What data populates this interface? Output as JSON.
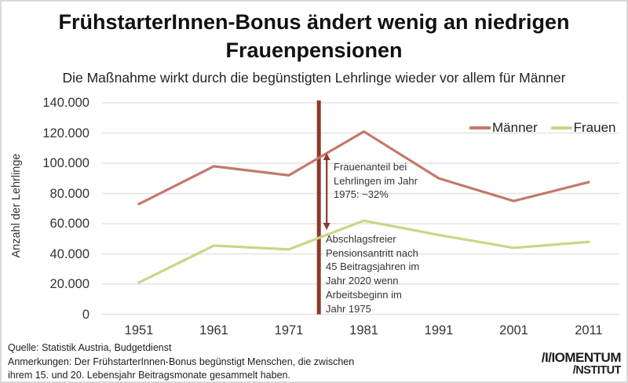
{
  "header": {
    "title_line1": "FrühstarterInnen-Bonus ändert wenig an niedrigen",
    "title_line2": "Frauenpensionen",
    "subtitle": "Die Maßnahme wirkt durch die begünstigten Lehrlinge wieder vor allem für Männer"
  },
  "chart_data": {
    "type": "line",
    "title": "FrühstarterInnen-Bonus ändert wenig an niedrigen Frauenpensionen",
    "xlabel": "",
    "ylabel": "Anzahl der Lehrlinge",
    "categories": [
      "1951",
      "1961",
      "1971",
      "1981",
      "1991",
      "2001",
      "2011"
    ],
    "series": [
      {
        "name": "Männer",
        "color": "#c4796a",
        "values": [
          73000,
          98000,
          92000,
          121000,
          90000,
          75000,
          87500
        ]
      },
      {
        "name": "Frauen",
        "color": "#c9d687",
        "values": [
          21000,
          45500,
          43000,
          62000,
          52500,
          44000,
          48000
        ]
      }
    ],
    "ylim": [
      0,
      140000
    ],
    "ytick_step": 20000,
    "ytick_labels": [
      "0",
      "20.000",
      "40.000",
      "60.000",
      "80.000",
      "100.000",
      "120.000",
      "140.000"
    ],
    "grid": "horizontal",
    "legend_position": "top-right",
    "reference_line": {
      "year": 1975,
      "color": "#8a3a28"
    },
    "arrow": {
      "color": "#8a3a28"
    },
    "annotations": [
      {
        "id": "frauenanteil",
        "text": "Frauenanteil bei\nLehrlingen im Jahr\n1975: ~32%"
      },
      {
        "id": "abschlagsfrei",
        "text": "Abschlagsfreier\nPensionsantritt nach\n45 Beitragsjahren im\nJahr 2020 wenn\nArbeitsbeginn im\nJahr 1975"
      }
    ]
  },
  "footer": {
    "source": "Quelle: Statistik Austria, Budgetdienst",
    "notes_line1": "Anmerkungen: Der FrühstarterInnen-Bonus begünstigt Menschen, die zwischen",
    "notes_line2": "ihrem 15. und 20. Lebensjahr Beitragsmonate gesammelt haben.",
    "logo_line1": "/I/IOMENTUM",
    "logo_line2": "/NSTITUT"
  },
  "colors": {
    "maenner": "#c4796a",
    "frauen": "#c9d687",
    "accent_dark_red": "#8a3a28",
    "grid": "#e3e3e3",
    "text": "#1d1d1b"
  }
}
